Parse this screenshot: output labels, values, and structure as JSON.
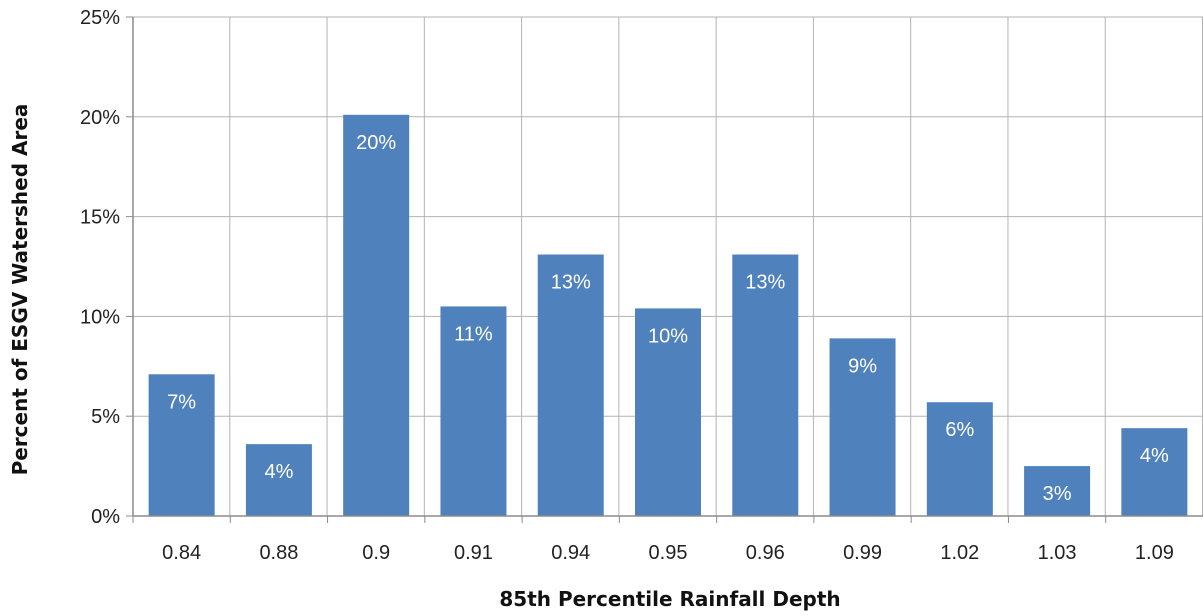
{
  "chart_data": {
    "type": "bar",
    "title": "",
    "xlabel": "85th Percentile Rainfall Depth",
    "ylabel": "Percent of ESGV Watershed Area",
    "categories": [
      "0.84",
      "0.88",
      "0.9",
      "0.91",
      "0.94",
      "0.95",
      "0.96",
      "0.99",
      "1.02",
      "1.03",
      "1.09"
    ],
    "values": [
      7.1,
      3.6,
      20.1,
      10.5,
      13.1,
      10.4,
      13.1,
      8.9,
      5.7,
      2.5,
      4.4
    ],
    "data_labels": [
      "7%",
      "4%",
      "20%",
      "11%",
      "13%",
      "10%",
      "13%",
      "9%",
      "6%",
      "3%",
      "4%"
    ],
    "y_ticks": [
      0,
      5,
      10,
      15,
      20,
      25
    ],
    "y_tick_labels": [
      "0%",
      "5%",
      "10%",
      "15%",
      "20%",
      "25%"
    ],
    "ylim": [
      0,
      25
    ],
    "grid": true,
    "legend": "none",
    "colors": {
      "bar": "#4f81bd",
      "grid": "#b3b3b3",
      "axis": "#8c8c8c",
      "data_label": "#ffffff"
    }
  }
}
